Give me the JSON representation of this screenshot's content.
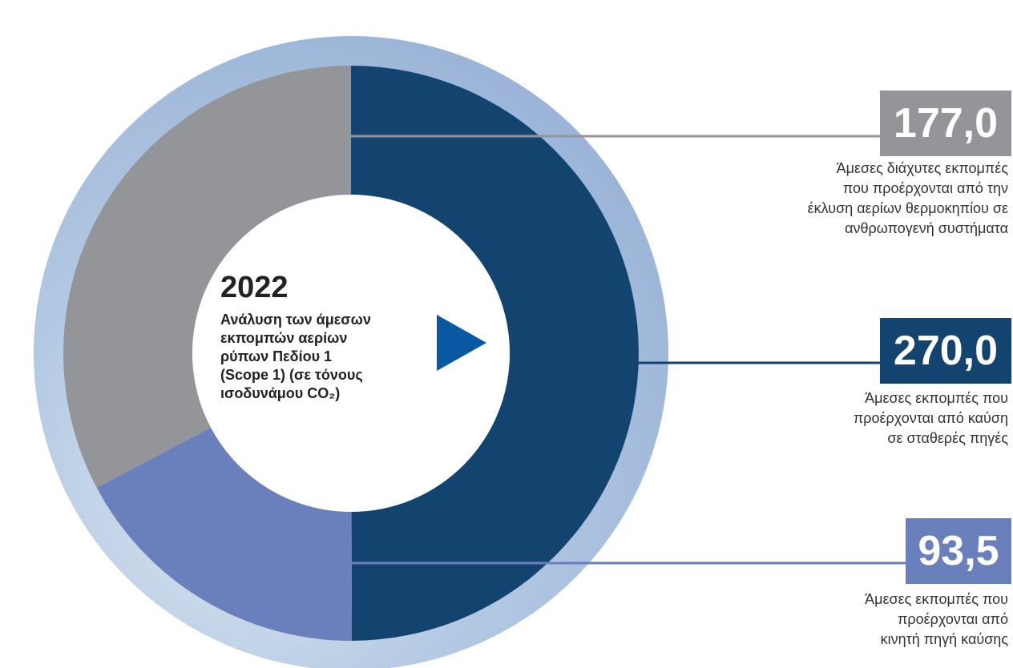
{
  "chart_data": {
    "type": "pie",
    "title": "2022",
    "subtitle": [
      "Ανάλυση των άμεσων",
      "εκπομπών αερίων",
      "ρύπων Πεδίου 1",
      "(Scope 1) (σε τόνους",
      "ισοδυνάμου CO₂)"
    ],
    "categories": [
      [
        "Άμεσες εκπομπές που",
        "προέρχονται από καύση",
        "σε σταθερές πηγές"
      ],
      [
        "Άμεσες εκπομπές που",
        "προέρχονται από",
        "κινητή πηγή καύσης"
      ],
      [
        "Άμεσες διάχυτες εκπομπές",
        "που προέρχονται από την",
        "έκλυση αερίων θερμοκηπίου σε",
        "ανθρωπογενή συστήματα"
      ]
    ],
    "values": [
      270,
      93.5,
      177
    ],
    "value_labels": [
      "270,0",
      "93,5",
      "177,0"
    ],
    "colors": [
      "#13436f",
      "#6a80bd",
      "#939598"
    ]
  }
}
